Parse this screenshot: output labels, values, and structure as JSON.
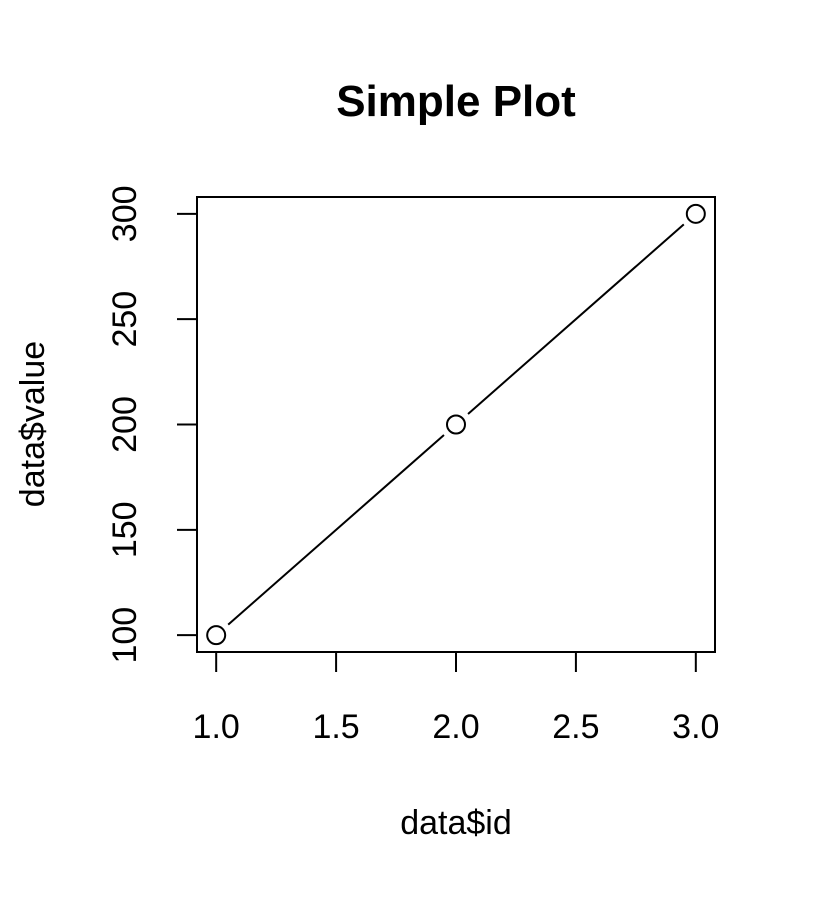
{
  "chart_data": {
    "type": "line",
    "title": "Simple Plot",
    "xlabel": "data$id",
    "ylabel": "data$value",
    "x": [
      1,
      2,
      3
    ],
    "y": [
      100,
      200,
      300
    ],
    "xlim": [
      0.92,
      3.08
    ],
    "ylim": [
      92,
      308
    ],
    "xticks": [
      1,
      1.5,
      2,
      2.5,
      3
    ],
    "xtick_labels": [
      "1.0",
      "1.5",
      "2.0",
      "2.5",
      "3.0"
    ],
    "yticks": [
      100,
      150,
      200,
      250,
      300
    ],
    "ytick_labels": [
      "100",
      "150",
      "200",
      "250",
      "300"
    ],
    "marker": "open-circle",
    "line_style": "solid-with-gaps-at-points",
    "grid": false,
    "legend": "none",
    "colors": {
      "line": "#000000",
      "background": "#ffffff"
    }
  }
}
